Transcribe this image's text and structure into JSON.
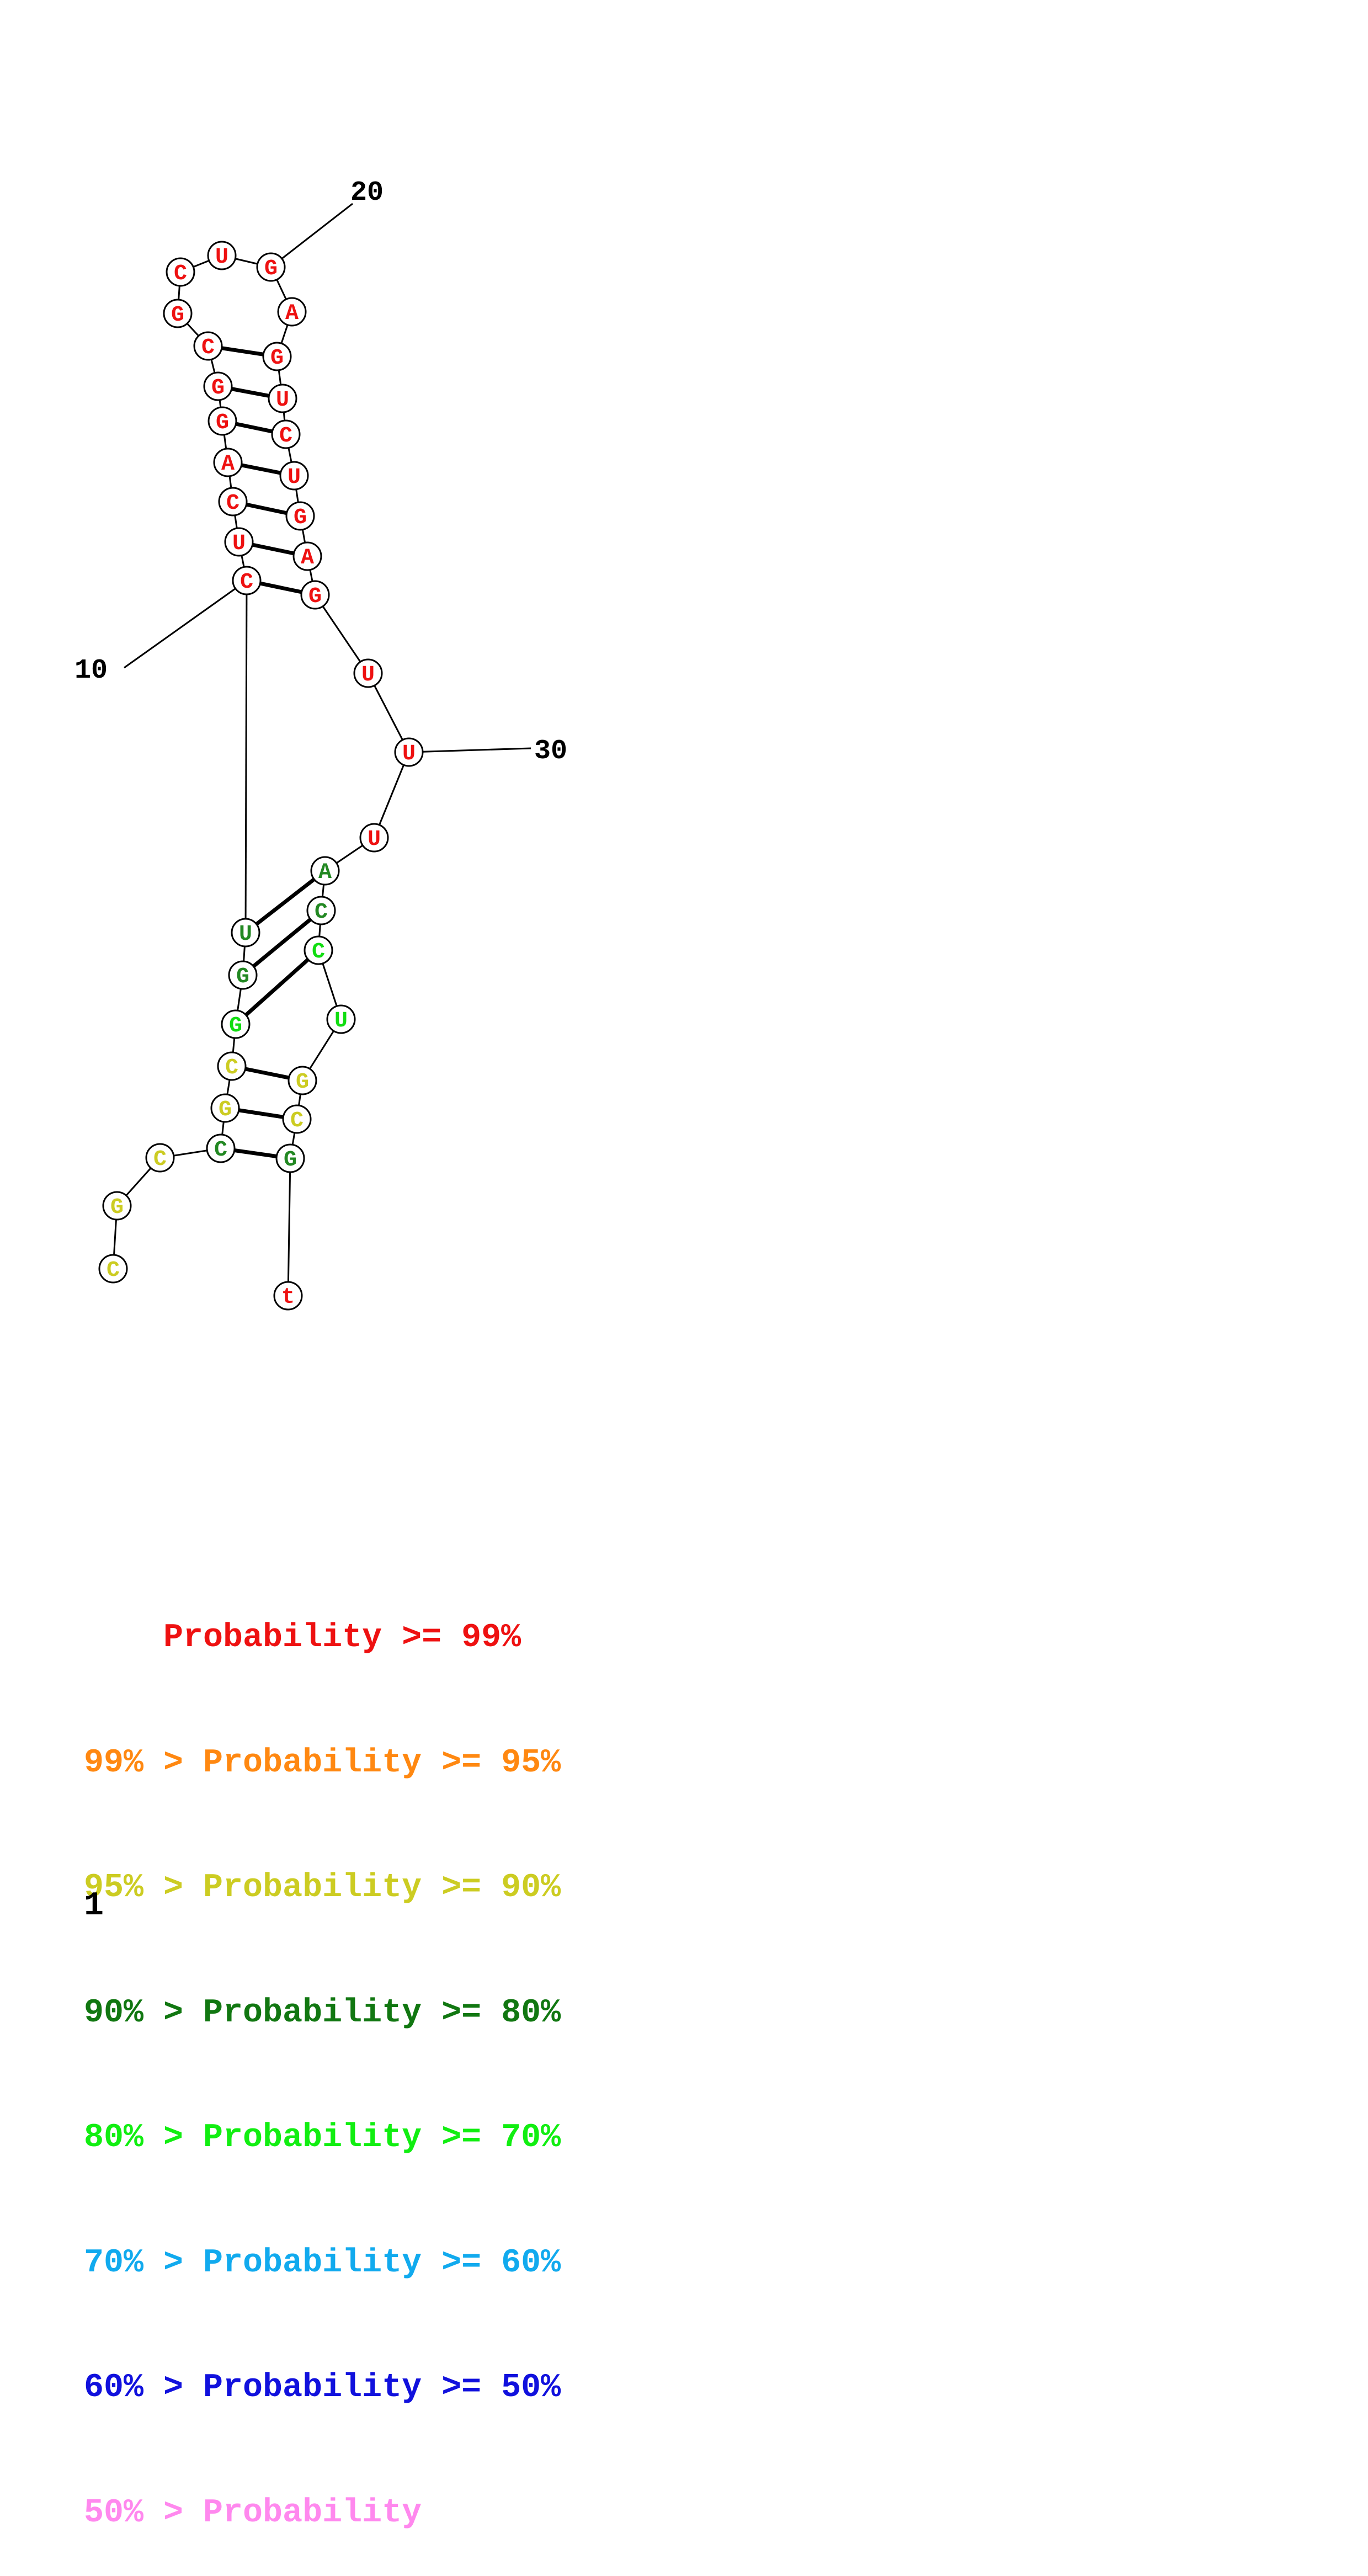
{
  "nucleotides": [
    {
      "base": "C",
      "color": "#cccc22"
    },
    {
      "base": "G",
      "color": "#cccc22"
    },
    {
      "base": "C",
      "color": "#cccc22"
    },
    {
      "base": "C",
      "color": "#228822"
    },
    {
      "base": "G",
      "color": "#cccc22"
    },
    {
      "base": "C",
      "color": "#cccc22"
    },
    {
      "base": "G",
      "color": "#11dd11"
    },
    {
      "base": "G",
      "color": "#228822"
    },
    {
      "base": "U",
      "color": "#228822"
    },
    {
      "base": "C",
      "color": "#ee1111"
    },
    {
      "base": "U",
      "color": "#ee1111"
    },
    {
      "base": "C",
      "color": "#ee1111"
    },
    {
      "base": "A",
      "color": "#ee1111"
    },
    {
      "base": "G",
      "color": "#ee1111"
    },
    {
      "base": "G",
      "color": "#ee1111"
    },
    {
      "base": "C",
      "color": "#ee1111"
    },
    {
      "base": "G",
      "color": "#ee1111"
    },
    {
      "base": "C",
      "color": "#ee1111"
    },
    {
      "base": "U",
      "color": "#ee1111"
    },
    {
      "base": "G",
      "color": "#ee1111"
    },
    {
      "base": "A",
      "color": "#ee1111"
    },
    {
      "base": "G",
      "color": "#ee1111"
    },
    {
      "base": "U",
      "color": "#ee1111"
    },
    {
      "base": "C",
      "color": "#ee1111"
    },
    {
      "base": "U",
      "color": "#ee1111"
    },
    {
      "base": "G",
      "color": "#ee1111"
    },
    {
      "base": "A",
      "color": "#ee1111"
    },
    {
      "base": "G",
      "color": "#ee1111"
    },
    {
      "base": "U",
      "color": "#ee1111"
    },
    {
      "base": "U",
      "color": "#ee1111"
    },
    {
      "base": "U",
      "color": "#ee1111"
    },
    {
      "base": "A",
      "color": "#228822"
    },
    {
      "base": "C",
      "color": "#228822"
    },
    {
      "base": "C",
      "color": "#11dd11"
    },
    {
      "base": "U",
      "color": "#11dd11"
    },
    {
      "base": "G",
      "color": "#cccc22"
    },
    {
      "base": "C",
      "color": "#cccc22"
    },
    {
      "base": "G",
      "color": "#228822"
    },
    {
      "base": "t",
      "color": "#ee1111"
    }
  ],
  "base_pairs": [
    [
      4,
      38
    ],
    [
      5,
      37
    ],
    [
      6,
      36
    ],
    [
      7,
      34
    ],
    [
      8,
      33
    ],
    [
      9,
      32
    ],
    [
      10,
      28
    ],
    [
      11,
      27
    ],
    [
      12,
      26
    ],
    [
      13,
      25
    ],
    [
      14,
      24
    ],
    [
      15,
      23
    ],
    [
      16,
      22
    ]
  ],
  "position_labels": [
    {
      "index": 10,
      "text": "10"
    },
    {
      "index": 20,
      "text": "20"
    },
    {
      "index": 30,
      "text": "30"
    }
  ],
  "legend": [
    {
      "text": "    Probability >= 99%",
      "color": "#ee1111"
    },
    {
      "text": "99% > Probability >= 95%",
      "color": "#ff8811"
    },
    {
      "text": "95% > Probability >= 90%",
      "color": "#cccc22"
    },
    {
      "text": "90% > Probability >= 80%",
      "color": "#117711"
    },
    {
      "text": "80% > Probability >= 70%",
      "color": "#11ee11"
    },
    {
      "text": "70% > Probability >= 60%",
      "color": "#11aaee"
    },
    {
      "text": "60% > Probability >= 50%",
      "color": "#1111dd"
    },
    {
      "text": "50% > Probability",
      "color": "#ff88ee"
    }
  ],
  "page_number": "1"
}
